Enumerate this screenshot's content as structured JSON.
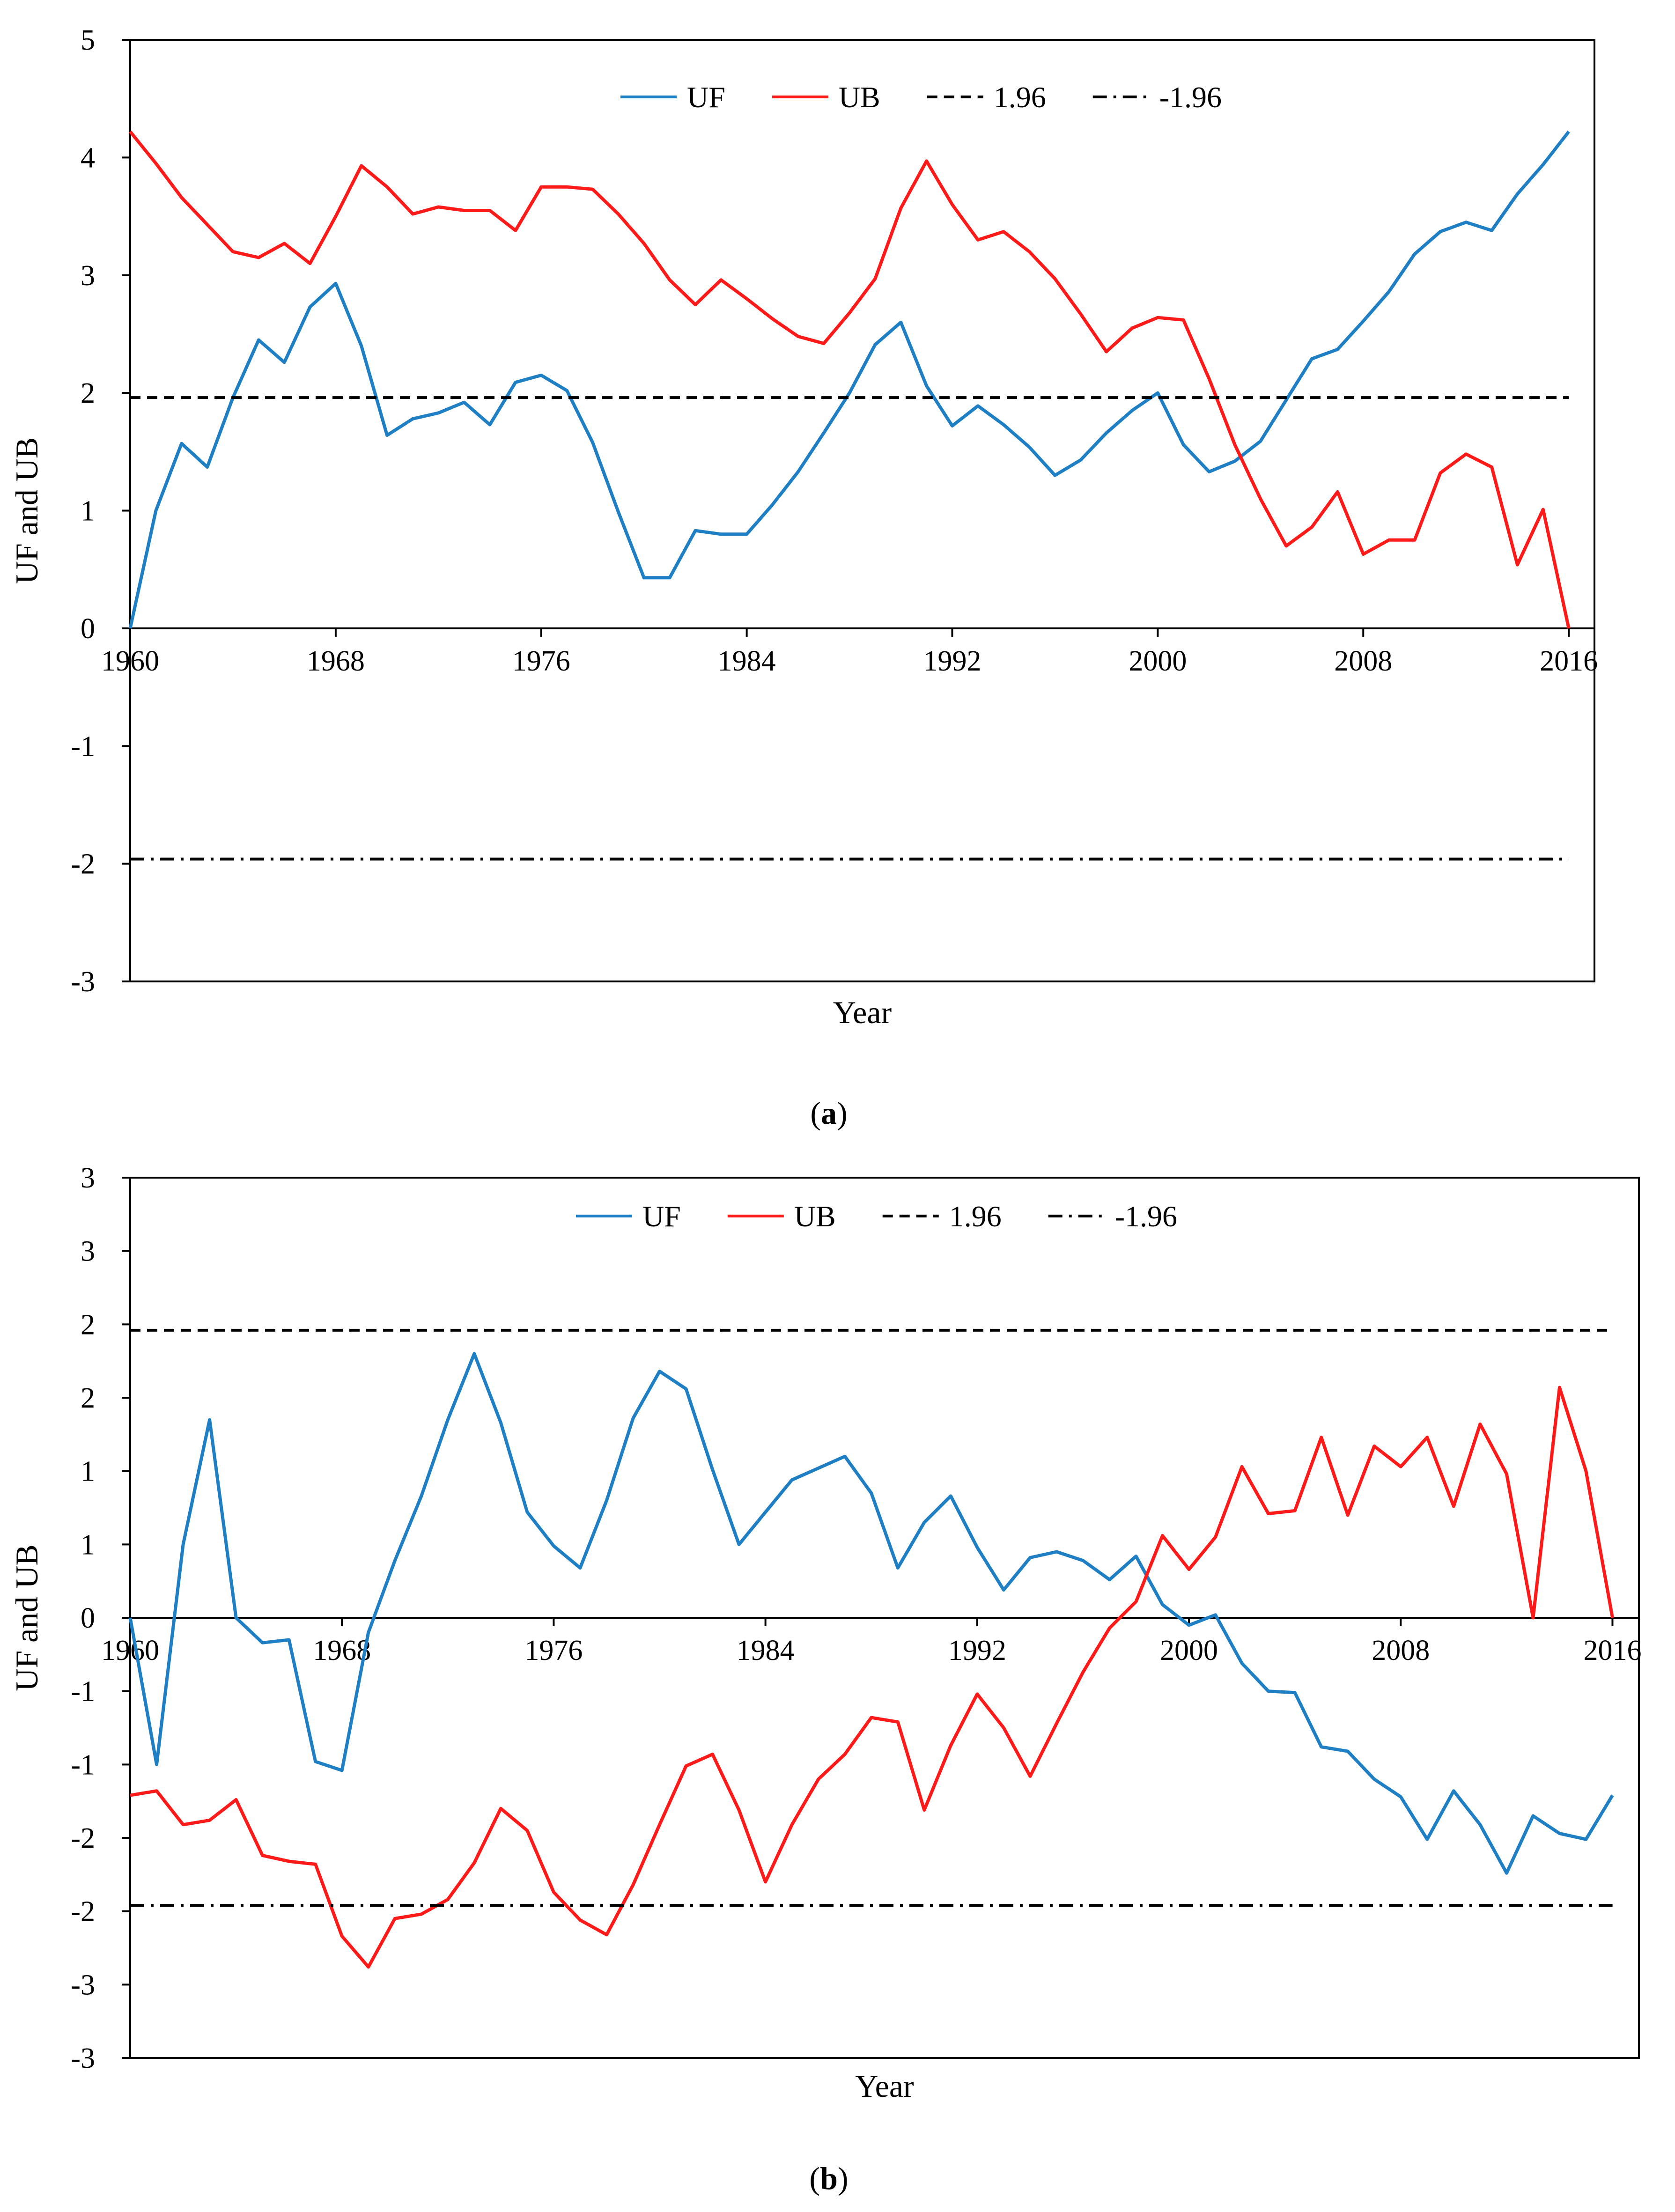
{
  "chart_data": [
    {
      "id": "a",
      "type": "line",
      "caption_open": "(",
      "caption_letter": "a",
      "caption_close": ")",
      "xlabel": "Year",
      "ylabel": "UF and UB",
      "xlim": [
        1960,
        2017
      ],
      "ylim": [
        -3,
        5
      ],
      "x_ticks": [
        1960,
        1968,
        1976,
        1984,
        1992,
        2000,
        2008,
        2016
      ],
      "y_ticks": [
        -3,
        -2,
        -1,
        0,
        1,
        2,
        3,
        4,
        5
      ],
      "y_tick_labels": [
        "-3",
        "-2",
        "-1",
        "0",
        "1",
        "2",
        "3",
        "4",
        "5"
      ],
      "legend_position": "top-right",
      "x": [
        1960,
        1961,
        1962,
        1963,
        1964,
        1965,
        1966,
        1967,
        1968,
        1969,
        1970,
        1971,
        1972,
        1973,
        1974,
        1975,
        1976,
        1977,
        1978,
        1979,
        1980,
        1981,
        1982,
        1983,
        1984,
        1985,
        1986,
        1987,
        1988,
        1989,
        1990,
        1991,
        1992,
        1993,
        1994,
        1995,
        1996,
        1997,
        1998,
        1999,
        2000,
        2001,
        2002,
        2003,
        2004,
        2005,
        2006,
        2007,
        2008,
        2009,
        2010,
        2011,
        2012,
        2013,
        2014,
        2015,
        2016
      ],
      "series": [
        {
          "name": "UF",
          "color": "#1f7fc4",
          "style": "solid",
          "values": [
            0.0,
            1.0,
            1.57,
            1.37,
            1.96,
            2.45,
            2.26,
            2.73,
            2.93,
            2.4,
            1.64,
            1.78,
            1.83,
            1.92,
            1.73,
            2.09,
            2.15,
            2.02,
            1.58,
            0.99,
            0.43,
            0.43,
            0.83,
            0.8,
            0.8,
            1.05,
            1.33,
            1.66,
            2.0,
            2.41,
            2.6,
            2.06,
            1.72,
            1.89,
            1.73,
            1.54,
            1.3,
            1.43,
            1.66,
            1.85,
            2.0,
            1.56,
            1.33,
            1.42,
            1.59,
            1.94,
            2.29,
            2.37,
            2.61,
            2.86,
            3.18,
            3.37,
            3.45,
            3.38,
            3.69,
            3.94,
            4.22
          ]
        },
        {
          "name": "UB",
          "color": "#ff1a1a",
          "style": "solid",
          "values": [
            4.22,
            3.95,
            3.66,
            3.43,
            3.2,
            3.15,
            3.27,
            3.1,
            3.5,
            3.93,
            3.75,
            3.52,
            3.58,
            3.55,
            3.55,
            3.38,
            3.75,
            3.75,
            3.73,
            3.52,
            3.27,
            2.96,
            2.75,
            2.96,
            2.8,
            2.63,
            2.48,
            2.42,
            2.68,
            2.97,
            3.57,
            3.97,
            3.6,
            3.3,
            3.37,
            3.2,
            2.97,
            2.67,
            2.35,
            2.55,
            2.64,
            2.62,
            2.12,
            1.56,
            1.1,
            0.7,
            0.86,
            1.16,
            0.63,
            0.75,
            0.75,
            1.32,
            1.48,
            1.37,
            0.54,
            1.01,
            0.0
          ]
        },
        {
          "name": "1.96",
          "color": "#000000",
          "style": "dashed",
          "constant": 1.96
        },
        {
          "name": "-1.96",
          "color": "#000000",
          "style": "dashdot",
          "constant": -1.96
        }
      ]
    },
    {
      "id": "b",
      "type": "line",
      "caption_open": "(",
      "caption_letter": "b",
      "caption_close": ")",
      "xlabel": "Year",
      "ylabel": "UF and UB",
      "xlim": [
        1960,
        2017
      ],
      "ylim": [
        -3,
        3
      ],
      "x_ticks": [
        1960,
        1968,
        1976,
        1984,
        1992,
        2000,
        2008,
        2016
      ],
      "y_ticks": [
        -3,
        -2.5,
        -2,
        -1.5,
        -1,
        -0.5,
        0,
        0.5,
        1,
        1.5,
        2,
        2.5,
        3
      ],
      "y_tick_labels": [
        "-3",
        "-3",
        "-2",
        "-2",
        "-1",
        "-1",
        "0",
        "1",
        "1",
        "2",
        "2",
        "3",
        "3"
      ],
      "legend_position": "top-right",
      "x": [
        1960,
        1961,
        1962,
        1963,
        1964,
        1965,
        1966,
        1967,
        1968,
        1969,
        1970,
        1971,
        1972,
        1973,
        1974,
        1975,
        1976,
        1977,
        1978,
        1979,
        1980,
        1981,
        1982,
        1983,
        1984,
        1985,
        1986,
        1987,
        1988,
        1989,
        1990,
        1991,
        1992,
        1993,
        1994,
        1995,
        1996,
        1997,
        1998,
        1999,
        2000,
        2001,
        2002,
        2003,
        2004,
        2005,
        2006,
        2007,
        2008,
        2009,
        2010,
        2011,
        2012,
        2013,
        2014,
        2015,
        2016
      ],
      "series": [
        {
          "name": "UF",
          "color": "#1f7fc4",
          "style": "solid",
          "values": [
            0.0,
            -1.0,
            0.5,
            1.35,
            0.0,
            -0.17,
            -0.15,
            -0.98,
            -1.04,
            -0.1,
            0.39,
            0.83,
            1.35,
            1.8,
            1.33,
            0.72,
            0.49,
            0.34,
            0.8,
            1.36,
            1.68,
            1.56,
            1.01,
            0.5,
            0.72,
            0.94,
            1.02,
            1.1,
            0.85,
            0.34,
            0.65,
            0.83,
            0.48,
            0.19,
            0.41,
            0.45,
            0.39,
            0.26,
            0.42,
            0.09,
            -0.05,
            0.02,
            -0.31,
            -0.5,
            -0.51,
            -0.88,
            -0.91,
            -1.1,
            -1.22,
            -1.51,
            -1.18,
            -1.41,
            -1.74,
            -1.35,
            -1.47,
            -1.51,
            -1.21
          ]
        },
        {
          "name": "UB",
          "color": "#ff1a1a",
          "style": "solid",
          "values": [
            -1.21,
            -1.18,
            -1.41,
            -1.38,
            -1.24,
            -1.62,
            -1.66,
            -1.68,
            -2.17,
            -2.38,
            -2.05,
            -2.02,
            -1.92,
            -1.67,
            -1.3,
            -1.45,
            -1.87,
            -2.06,
            -2.16,
            -1.82,
            -1.41,
            -1.01,
            -0.93,
            -1.31,
            -1.8,
            -1.41,
            -1.1,
            -0.93,
            -0.68,
            -0.71,
            -1.31,
            -0.87,
            -0.52,
            -0.75,
            -1.08,
            -0.72,
            -0.37,
            -0.07,
            0.11,
            0.56,
            0.33,
            0.55,
            1.03,
            0.71,
            0.73,
            1.23,
            0.7,
            1.17,
            1.03,
            1.23,
            0.76,
            1.32,
            0.98,
            0.0,
            1.57,
            1.0,
            0.0
          ]
        },
        {
          "name": "1.96",
          "color": "#000000",
          "style": "dashed",
          "constant": 1.96
        },
        {
          "name": "-1.96",
          "color": "#000000",
          "style": "dashdot",
          "constant": -1.96
        }
      ]
    }
  ]
}
